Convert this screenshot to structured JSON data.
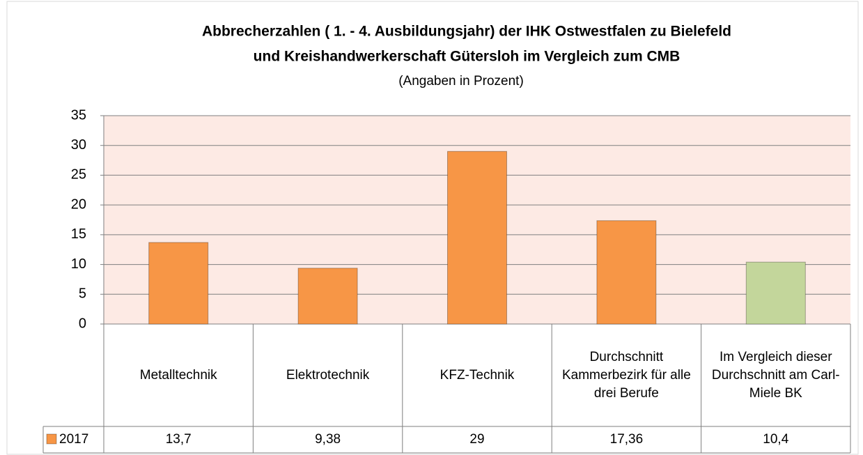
{
  "chart_data": {
    "type": "bar",
    "title": [
      "Abbrecherzahlen ( 1. - 4. Ausbildungsjahr) der IHK Ostwestfalen zu Bielefeld",
      "und Kreishandwerkerschaft Gütersloh im Vergleich zum CMB"
    ],
    "subtitle": "(Angaben in Prozent)",
    "categories": [
      "Metalltechnik",
      "Elektrotechnik",
      "KFZ-Technik",
      "Durchschnitt Kammerbezirk für alle drei Berufe",
      "Im Vergleich dieser Durchschnitt am Carl-Miele BK"
    ],
    "series": [
      {
        "name": "2017",
        "color": "#f79646",
        "colors": [
          "#f79646",
          "#f79646",
          "#f79646",
          "#f79646",
          "#c3d69b"
        ],
        "values": [
          13.7,
          9.38,
          29,
          17.36,
          10.4
        ],
        "value_labels": [
          "13,7",
          "9,38",
          "29",
          "17,36",
          "10,4"
        ]
      }
    ],
    "ylim": [
      0,
      35
    ],
    "yticks": [
      0,
      5,
      10,
      15,
      20,
      25,
      30,
      35
    ],
    "grid": true,
    "plot_background": "#fdeae4",
    "legend": "data-table"
  }
}
